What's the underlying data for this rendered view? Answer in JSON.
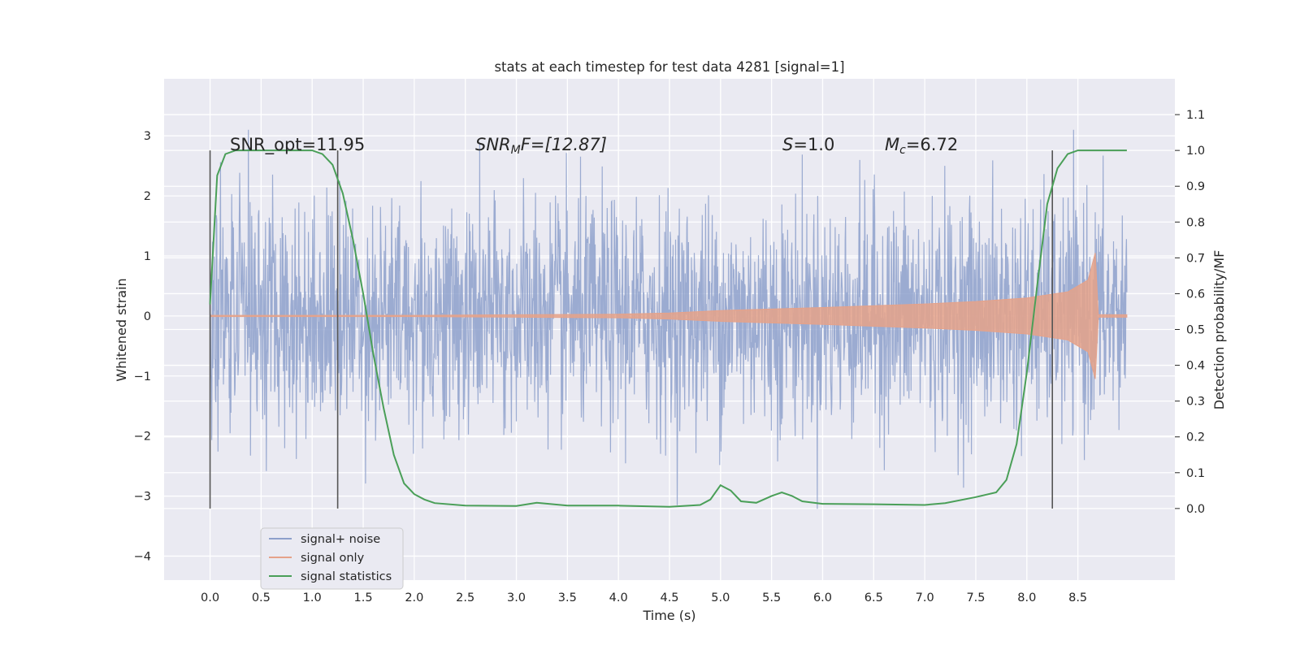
{
  "chart_data": {
    "type": "line",
    "title": "stats at each timestep for test data 4281 [signal=1]",
    "xlabel": "Time (s)",
    "ylabel": "Whitened strain",
    "y2label": "Detection probability/MF",
    "xlim": [
      -0.45,
      9.45
    ],
    "ylim": [
      -4.4,
      3.95
    ],
    "y2lim": [
      -0.2,
      1.2
    ],
    "x_ticks": [
      "0.0",
      "0.5",
      "1.0",
      "1.5",
      "2.0",
      "2.5",
      "3.0",
      "3.5",
      "4.0",
      "4.5",
      "5.0",
      "5.5",
      "6.0",
      "6.5",
      "7.0",
      "7.5",
      "8.0",
      "8.5"
    ],
    "y_ticks": [
      "3",
      "2",
      "1",
      "0",
      "−1",
      "−2",
      "−3",
      "−4"
    ],
    "y2_ticks": [
      "1.1",
      "1.0",
      "0.9",
      "0.8",
      "0.7",
      "0.6",
      "0.5",
      "0.4",
      "0.3",
      "0.2",
      "0.1",
      "0.0"
    ],
    "grid": true,
    "legend_position": "lower-left",
    "annotations": {
      "snr_opt": "SNR_opt=11.95",
      "snr_mf_label": "SNR",
      "snr_mf_sub": "M",
      "snr_mf_tail": "F=[12.87]",
      "s_label": "S",
      "s_value": "=1.0",
      "mc_label": "M",
      "mc_sub": "c",
      "mc_value": "=6.72"
    },
    "vlines_x": [
      0.0,
      1.25,
      8.25
    ],
    "series": [
      {
        "name": "signal+ noise",
        "color": "#8da0cb",
        "x_range": [
          0.0,
          8.98
        ],
        "envelope_note": "dense noise, mostly within ±1.5, peaks to about ±3"
      },
      {
        "name": "signal only",
        "color": "#e5a28a",
        "chirp_envelope": {
          "x": [
            0.0,
            2.0,
            4.0,
            4.5,
            5.0,
            6.0,
            7.0,
            7.5,
            8.0,
            8.4,
            8.6,
            8.67,
            8.7,
            8.98
          ],
          "amp": [
            0.01,
            0.01,
            0.03,
            0.05,
            0.09,
            0.14,
            0.2,
            0.24,
            0.3,
            0.4,
            0.6,
            1.05,
            0.02,
            0.02
          ]
        }
      },
      {
        "name": "signal statistics",
        "color": "#4a9f58",
        "x": [
          0.0,
          0.07,
          0.15,
          0.25,
          0.4,
          0.6,
          0.8,
          1.0,
          1.1,
          1.2,
          1.3,
          1.4,
          1.5,
          1.6,
          1.7,
          1.8,
          1.9,
          2.0,
          2.1,
          2.2,
          2.5,
          3.0,
          3.2,
          3.5,
          4.0,
          4.5,
          4.8,
          4.9,
          5.0,
          5.1,
          5.2,
          5.35,
          5.5,
          5.6,
          5.7,
          5.8,
          6.0,
          6.5,
          7.0,
          7.2,
          7.5,
          7.7,
          7.8,
          7.9,
          8.0,
          8.1,
          8.2,
          8.3,
          8.4,
          8.5,
          8.6,
          8.8,
          8.98
        ],
        "y": [
          0.57,
          0.93,
          0.99,
          1.0,
          1.0,
          1.0,
          1.0,
          1.0,
          0.99,
          0.96,
          0.88,
          0.75,
          0.6,
          0.43,
          0.28,
          0.15,
          0.07,
          0.04,
          0.025,
          0.015,
          0.008,
          0.007,
          0.016,
          0.008,
          0.008,
          0.005,
          0.01,
          0.025,
          0.065,
          0.05,
          0.02,
          0.016,
          0.035,
          0.045,
          0.035,
          0.02,
          0.013,
          0.012,
          0.01,
          0.015,
          0.032,
          0.045,
          0.08,
          0.18,
          0.38,
          0.62,
          0.85,
          0.95,
          0.99,
          1.0,
          1.0,
          1.0,
          1.0
        ]
      }
    ]
  }
}
